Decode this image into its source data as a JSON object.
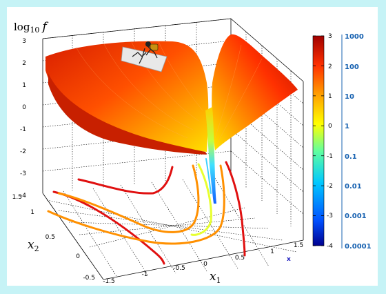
{
  "chart_data": {
    "type": "surface",
    "title": "",
    "zlabel": {
      "prefix": "log",
      "sub": "10",
      "var": "f"
    },
    "xlabel": {
      "var": "x",
      "sub": "1"
    },
    "ylabel": {
      "var": "x",
      "sub": "2"
    },
    "x_ticks": [
      "-1.5",
      "-1",
      "-0.5",
      "0",
      "0.5",
      "1",
      "1.5"
    ],
    "y_ticks": [
      "-0.5",
      "0",
      "0.5",
      "1",
      "1.5"
    ],
    "z_ticks": [
      "3",
      "2",
      "1",
      "0",
      "-1",
      "-2",
      "-3",
      "-4"
    ],
    "minimum_marker": "x",
    "colorbar": {
      "range": [
        -4,
        3
      ],
      "ticks": [
        "3",
        "2",
        "1",
        "0",
        "-1",
        "-2",
        "-3",
        "-4"
      ],
      "ticks_linear": [
        "1000",
        "100",
        "10",
        "1",
        "0.1",
        "0.01",
        "0.001",
        "0.0001"
      ]
    },
    "colormap": [
      "#00008f",
      "#0050ff",
      "#00c8ff",
      "#60ffa0",
      "#ffff00",
      "#ffa000",
      "#ff3000",
      "#a00000"
    ]
  }
}
